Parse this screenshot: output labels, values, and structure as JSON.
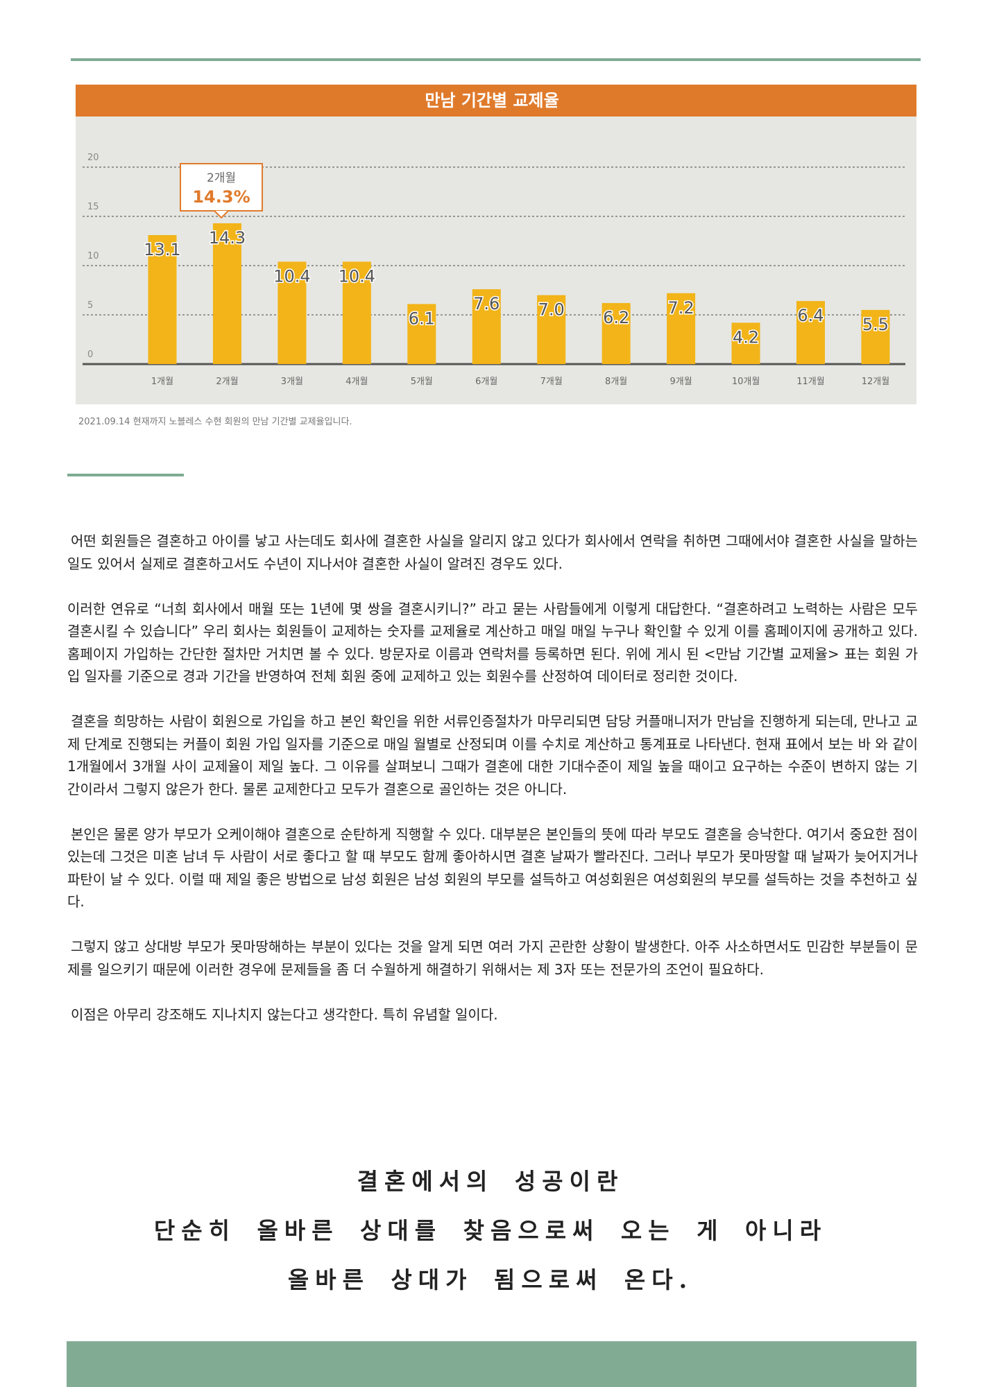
{
  "chart_data": {
    "type": "bar",
    "title": "만남 기간별 교제율",
    "categories": [
      "1개월",
      "2개월",
      "3개월",
      "4개월",
      "5개월",
      "6개월",
      "7개월",
      "8개월",
      "9개월",
      "10개월",
      "11개월",
      "12개월"
    ],
    "values": [
      13.1,
      14.3,
      10.4,
      10.4,
      6.1,
      7.6,
      7.0,
      6.2,
      7.2,
      4.2,
      6.4,
      5.5
    ],
    "value_labels": [
      "13.1",
      "14.3",
      "10.4",
      "10.4",
      "6.1",
      "7.6",
      "7.0",
      "6.2",
      "7.2",
      "4.2",
      "6.4",
      "5.5"
    ],
    "color": "#f2b418",
    "ylim": [
      0,
      20
    ],
    "yticks": [
      0,
      5,
      10,
      15,
      20
    ],
    "grid": true,
    "annotation": {
      "title": "2개월",
      "text": "14.3%"
    },
    "footnote": "2021.09.14 현재까지 노블레스 수현 회원의 만남 기간별 교제율입니다."
  },
  "paragraphs": [
    "어떤 회원들은 결혼하고 아이를 낳고 사는데도 회사에 결혼한 사실을 알리지 않고 있다가 회사에서 연락을 취하면 그때에서야 결혼한 사실을 말하는 일도 있어서 실제로 결혼하고서도 수년이 지나서야 결혼한 사실이 알려진 경우도 있다.",
    "이러한 연유로 “너희 회사에서 매월 또는 1년에 몇 쌍을 결혼시키니?” 라고 묻는 사람들에게 이렇게 대답한다. “결혼하려고 노력하는 사람은 모두 결혼시킬 수 있습니다” 우리 회사는 회원들이 교제하는 숫자를 교제율로 계산하고 매일 매일 누구나 확인할 수 있게 이를 홈페이지에 공개하고 있다. 홈페이지 가입하는 간단한 절차만 거치면 볼 수 있다. 방문자로 이름과 연락처를 등록하면 된다. 위에 게시 된 <만남 기간별 교제율> 표는 회원 가입 일자를 기준으로 경과 기간을 반영하여 전체 회원 중에 교제하고 있는 회원수를 산정하여 데이터로 정리한 것이다.",
    "결혼을 희망하는 사람이 회원으로 가입을 하고 본인 확인을 위한 서류인증절차가 마무리되면 담당 커플매니저가 만남을 진행하게 되는데, 만나고 교제 단계로 진행되는 커플이 회원 가입 일자를 기준으로 매일 월별로 산정되며 이를 수치로 계산하고 통계표로 나타낸다. 현재 표에서 보는 바 와 같이 1개월에서 3개월 사이 교제율이 제일 높다. 그 이유를 살펴보니 그때가 결혼에 대한 기대수준이 제일 높을 때이고 요구하는 수준이 변하지 않는 기간이라서 그렇지 않은가 한다. 물론 교제한다고 모두가 결혼으로 골인하는 것은 아니다.",
    "본인은 물론 양가 부모가 오케이해야 결혼으로 순탄하게 직행할 수 있다. 대부분은 본인들의 뜻에 따라 부모도 결혼을 승낙한다. 여기서 중요한 점이 있는데 그것은 미혼 남녀 두 사람이 서로 좋다고 할 때 부모도 함께 좋아하시면 결혼 날짜가 빨라진다. 그러나 부모가 못마땅할 때 날짜가 늦어지거나 파탄이 날 수 있다. 이럴 때 제일 좋은 방법으로 남성 회원은 남성 회원의 부모를 설득하고 여성회원은 여성회원의 부모를 설득하는 것을 추천하고 싶다.",
    "그렇지 않고 상대방 부모가 못마땅해하는 부분이 있다는 것을 알게 되면 여러 가지 곤란한 상황이 발생한다. 아주 사소하면서도 민감한 부분들이 문제를 일으키기 때문에 이러한 경우에 문제들을 좀 더 수월하게 해결하기 위해서는 제 3자 또는 전문가의 조언이 필요하다.",
    "이점은 아무리 강조해도 지나치지 않는다고 생각한다. 특히 유념할 일이다."
  ],
  "quote": [
    "결혼에서의 성공이란",
    "단순히 올바른 상대를 찾음으로써 오는 게 아니라",
    "올바른 상대가 됨으로써 온다."
  ]
}
